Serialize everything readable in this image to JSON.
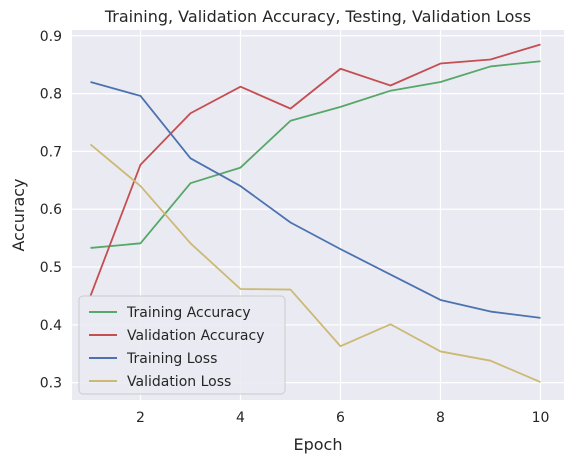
{
  "chart_data": {
    "type": "line",
    "title": "Training, Validation Accuracy, Testing, Validation Loss",
    "xlabel": "Epoch",
    "ylabel": "Accuracy",
    "x": [
      1,
      2,
      3,
      4,
      5,
      6,
      7,
      8,
      9,
      10
    ],
    "xlim": [
      0.63,
      10.47
    ],
    "ylim": [
      0.27,
      0.91
    ],
    "xticks": [
      2,
      4,
      6,
      8,
      10
    ],
    "yticks": [
      0.3,
      0.4,
      0.5,
      0.6,
      0.7,
      0.8,
      0.9
    ],
    "xtick_labels": [
      "2",
      "4",
      "6",
      "8",
      "10"
    ],
    "ytick_labels": [
      "0.3",
      "0.4",
      "0.5",
      "0.6",
      "0.7",
      "0.8",
      "0.9"
    ],
    "grid": true,
    "legend_position": "lower-left",
    "series": [
      {
        "name": "Training Accuracy",
        "color": "#55a868",
        "values": [
          0.533,
          0.541,
          0.645,
          0.672,
          0.753,
          0.777,
          0.805,
          0.82,
          0.847,
          0.856
        ]
      },
      {
        "name": "Validation Accuracy",
        "color": "#c44e52",
        "values": [
          0.45,
          0.677,
          0.766,
          0.812,
          0.774,
          0.843,
          0.814,
          0.852,
          0.859,
          0.885
        ]
      },
      {
        "name": "Training Loss",
        "color": "#4c72b0",
        "values": [
          0.82,
          0.796,
          0.688,
          0.64,
          0.577,
          0.531,
          0.487,
          0.443,
          0.423,
          0.412
        ]
      },
      {
        "name": "Validation Loss",
        "color": "#ccb974",
        "values": [
          0.712,
          0.64,
          0.541,
          0.462,
          0.461,
          0.363,
          0.401,
          0.354,
          0.338,
          0.301
        ]
      }
    ],
    "colors": {
      "plot_background": "#eaeaf2",
      "grid": "#ffffff",
      "legend_background": "#eaeaf2",
      "legend_border": "#cccccc"
    }
  }
}
